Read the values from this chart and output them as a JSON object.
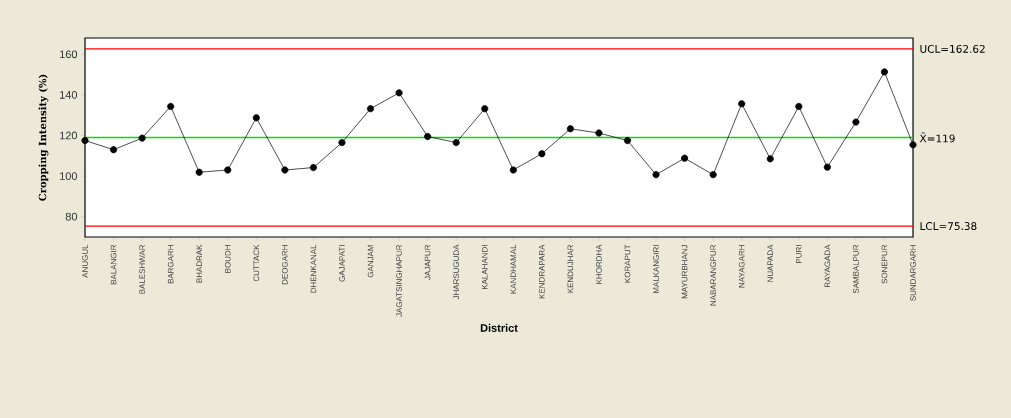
{
  "chart_data": {
    "type": "line",
    "xlabel": "District",
    "ylabel": "Cropping Intensity (%)",
    "categories": [
      "ANUGUL",
      "BALANGIR",
      "BALESHWAR",
      "BARGARH",
      "BHADRAK",
      "BOUDH",
      "CUTTACK",
      "DEOGARH",
      "DHENKANAL",
      "GAJAPATI",
      "GANJAM",
      "JAGATSINGHAPUR",
      "JAJAPUR",
      "JHARSUGUDA",
      "KALAHANDI",
      "KANDHAMAL",
      "KENDRAPARA",
      "KENDUJHAR",
      "KHORDHA",
      "KORAPUT",
      "MALKANGIRI",
      "MAYURBHANJ",
      "NABARANGPUR",
      "NAYAGARH",
      "NUAPADA",
      "PURI",
      "RAYAGADA",
      "SAMBALPUR",
      "SONEPUR",
      "SUNDARGARH"
    ],
    "values": [
      117.5,
      113,
      118.7,
      134.3,
      101.9,
      103,
      128.7,
      103,
      104.2,
      116.5,
      133.2,
      141,
      119.5,
      116.5,
      133.2,
      103,
      111,
      123.3,
      121.2,
      117.5,
      100.7,
      108.8,
      100.7,
      135.6,
      108.5,
      134.3,
      104.4,
      126.6,
      151.3,
      115.4
    ],
    "color": "#000000",
    "marker": "circle",
    "line_style": "solid",
    "grid": false,
    "ylim": [
      70,
      168
    ],
    "yticks": [
      80,
      100,
      120,
      140,
      160
    ],
    "ref_lines": [
      {
        "axis": "y",
        "value": 162.62,
        "label": "UCL=162.62",
        "color": "#ff0000"
      },
      {
        "axis": "y",
        "value": 119,
        "label": "X̄=119",
        "color": "#00e000"
      },
      {
        "axis": "y",
        "value": 75.38,
        "label": "LCL=75.38",
        "color": "#ff0000"
      }
    ]
  }
}
